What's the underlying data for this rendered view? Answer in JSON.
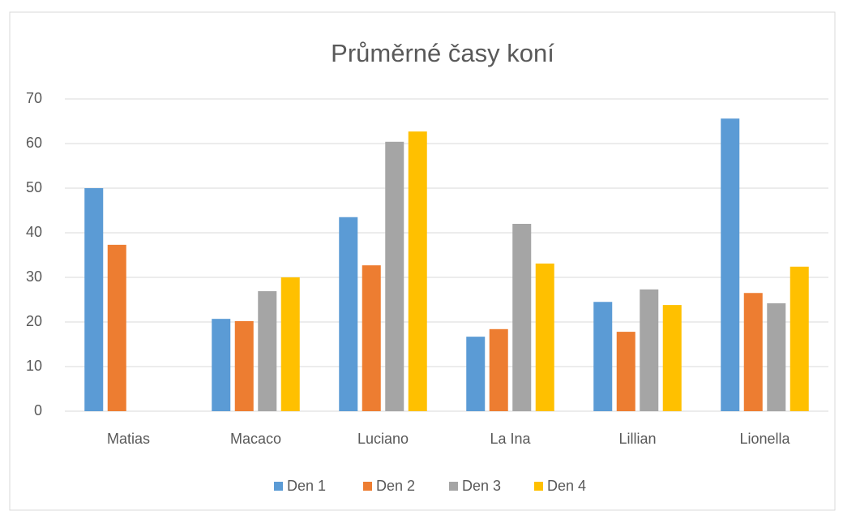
{
  "chart_data": {
    "type": "bar",
    "title": "Průměrné časy koní",
    "categories": [
      "Matias",
      "Macaco",
      "Luciano",
      "La Ina",
      "Lillian",
      "Lionella"
    ],
    "series": [
      {
        "name": "Den 1",
        "color": "#5b9bd5",
        "values": [
          50.0,
          20.7,
          43.5,
          16.7,
          24.5,
          65.6
        ]
      },
      {
        "name": "Den 2",
        "color": "#ed7d31",
        "values": [
          37.3,
          20.2,
          32.7,
          18.4,
          17.8,
          26.5
        ]
      },
      {
        "name": "Den 3",
        "color": "#a5a5a5",
        "values": [
          null,
          26.9,
          60.4,
          42.0,
          27.3,
          24.2
        ]
      },
      {
        "name": "Den 4",
        "color": "#ffc000",
        "values": [
          null,
          30.0,
          62.7,
          33.1,
          23.8,
          32.4
        ]
      }
    ],
    "ylim": [
      0,
      70
    ],
    "yticks": [
      0,
      10,
      20,
      30,
      40,
      50,
      60,
      70
    ],
    "grid": true,
    "legend": "bottom"
  }
}
